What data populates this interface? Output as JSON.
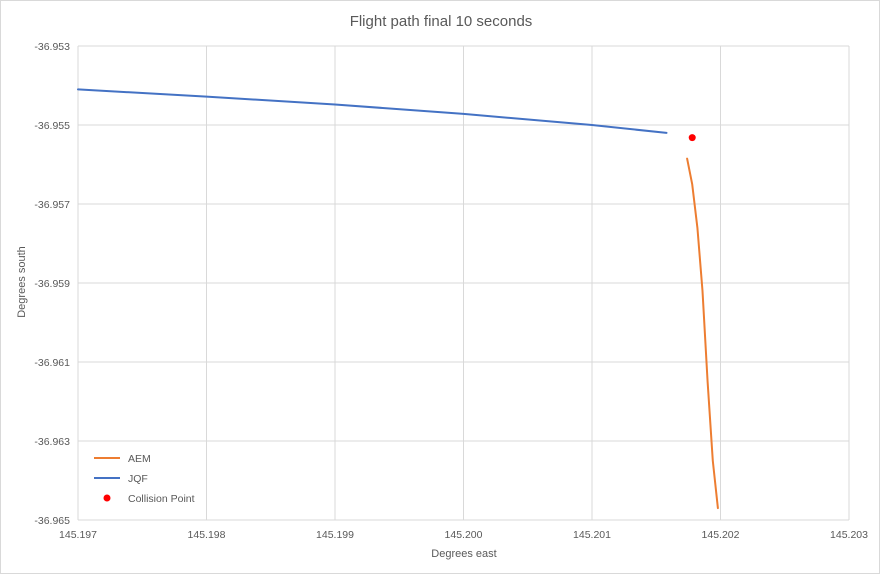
{
  "chart_data": {
    "type": "scatter",
    "title": "Flight path final 10 seconds",
    "xlabel": "Degrees east",
    "ylabel": "Degrees south",
    "xlim": [
      145.197,
      145.203
    ],
    "ylim": [
      -36.965,
      -36.953
    ],
    "x_ticks": [
      "145.197",
      "145.198",
      "145.199",
      "145.200",
      "145.201",
      "145.202",
      "145.203"
    ],
    "y_ticks": [
      "-36.953",
      "-36.955",
      "-36.957",
      "-36.959",
      "-36.961",
      "-36.963",
      "-36.965"
    ],
    "grid": true,
    "legend_position": "bottom-left",
    "series": [
      {
        "name": "AEM",
        "style": "line",
        "color": "#ED7D31",
        "points": [
          [
            145.20174,
            -36.95585
          ],
          [
            145.20178,
            -36.9565
          ],
          [
            145.20182,
            -36.9576
          ],
          [
            145.20186,
            -36.9592
          ],
          [
            145.2019,
            -36.9615
          ],
          [
            145.20194,
            -36.9635
          ],
          [
            145.20198,
            -36.9647
          ]
        ]
      },
      {
        "name": "JQF",
        "style": "line",
        "color": "#4472C4",
        "points": [
          [
            145.197,
            -36.9541
          ],
          [
            145.198,
            -36.95428
          ],
          [
            145.199,
            -36.95448
          ],
          [
            145.2,
            -36.95472
          ],
          [
            145.201,
            -36.955
          ],
          [
            145.20158,
            -36.9552
          ]
        ]
      },
      {
        "name": "Collision Point",
        "style": "marker",
        "color": "#FF0000",
        "points": [
          [
            145.20178,
            -36.95532
          ]
        ]
      }
    ]
  }
}
